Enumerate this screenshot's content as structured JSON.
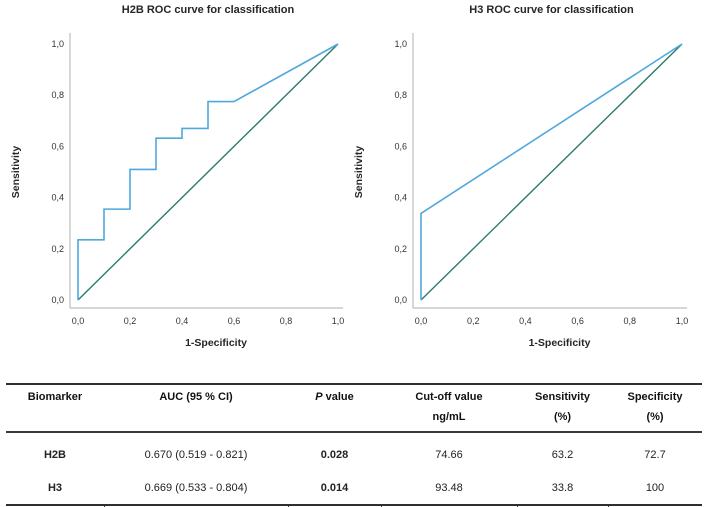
{
  "colors": {
    "curve": "#4fa8dc",
    "reference": "#2d7b70",
    "axis": "#b0b0b0"
  },
  "chart_data": [
    {
      "type": "line",
      "title": "H2B ROC curve for classification",
      "xlabel": "1-Specificity",
      "ylabel": "Sensitivity",
      "xlim": [
        0,
        1
      ],
      "ylim": [
        0,
        1
      ],
      "grid": false,
      "legend": "none",
      "x_ticks": [
        "0,0",
        "0,2",
        "0,4",
        "0,6",
        "0,8",
        "1,0"
      ],
      "y_ticks": [
        "0,0",
        "0,2",
        "0,4",
        "0,6",
        "0,8",
        "1,0"
      ],
      "series": [
        {
          "name": "ROC curve",
          "color": "#4fa8dc",
          "points": [
            [
              0,
              0
            ],
            [
              0,
              0.235
            ],
            [
              0.1,
              0.235
            ],
            [
              0.1,
              0.355
            ],
            [
              0.2,
              0.355
            ],
            [
              0.2,
              0.51
            ],
            [
              0.3,
              0.51
            ],
            [
              0.3,
              0.632
            ],
            [
              0.4,
              0.632
            ],
            [
              0.4,
              0.67
            ],
            [
              0.5,
              0.67
            ],
            [
              0.5,
              0.775
            ],
            [
              0.6,
              0.775
            ],
            [
              1,
              1
            ]
          ]
        },
        {
          "name": "Reference line",
          "color": "#2d7b70",
          "points": [
            [
              0,
              0
            ],
            [
              1,
              1
            ]
          ]
        }
      ]
    },
    {
      "type": "line",
      "title": "H3 ROC curve for classification",
      "xlabel": "1-Specificity",
      "ylabel": "Sensitivity",
      "xlim": [
        0,
        1
      ],
      "ylim": [
        0,
        1
      ],
      "grid": false,
      "legend": "none",
      "x_ticks": [
        "0,0",
        "0,2",
        "0,4",
        "0,6",
        "0,8",
        "1,0"
      ],
      "y_ticks": [
        "0,0",
        "0,2",
        "0,4",
        "0,6",
        "0,8",
        "1,0"
      ],
      "series": [
        {
          "name": "ROC curve",
          "color": "#4fa8dc",
          "points": [
            [
              0,
              0
            ],
            [
              0,
              0.338
            ],
            [
              1,
              1
            ]
          ]
        },
        {
          "name": "Reference line",
          "color": "#2d7b70",
          "points": [
            [
              0,
              0
            ],
            [
              1,
              1
            ]
          ]
        }
      ]
    }
  ],
  "table": {
    "headers": [
      {
        "line1": "Biomarker",
        "line2": ""
      },
      {
        "line1": "AUC (95 % CI)",
        "line2": ""
      },
      {
        "line1_italic": "P",
        "line1_rest": " value",
        "line2": ""
      },
      {
        "line1": "Cut-off value",
        "line2": "ng/mL"
      },
      {
        "line1": "Sensitivity",
        "line2": "(%)"
      },
      {
        "line1": "Specificity",
        "line2": "(%)"
      }
    ],
    "rows": [
      {
        "biomarker": "H2B",
        "auc": "0.670 (0.519 - 0.821)",
        "p_value": "0.028",
        "cutoff": "74.66",
        "sensitivity": "63.2",
        "specificity": "72.7"
      },
      {
        "biomarker": "H3",
        "auc": "0.669 (0.533 - 0.804)",
        "p_value": "0.014",
        "cutoff": "93.48",
        "sensitivity": "33.8",
        "specificity": "100"
      }
    ]
  }
}
